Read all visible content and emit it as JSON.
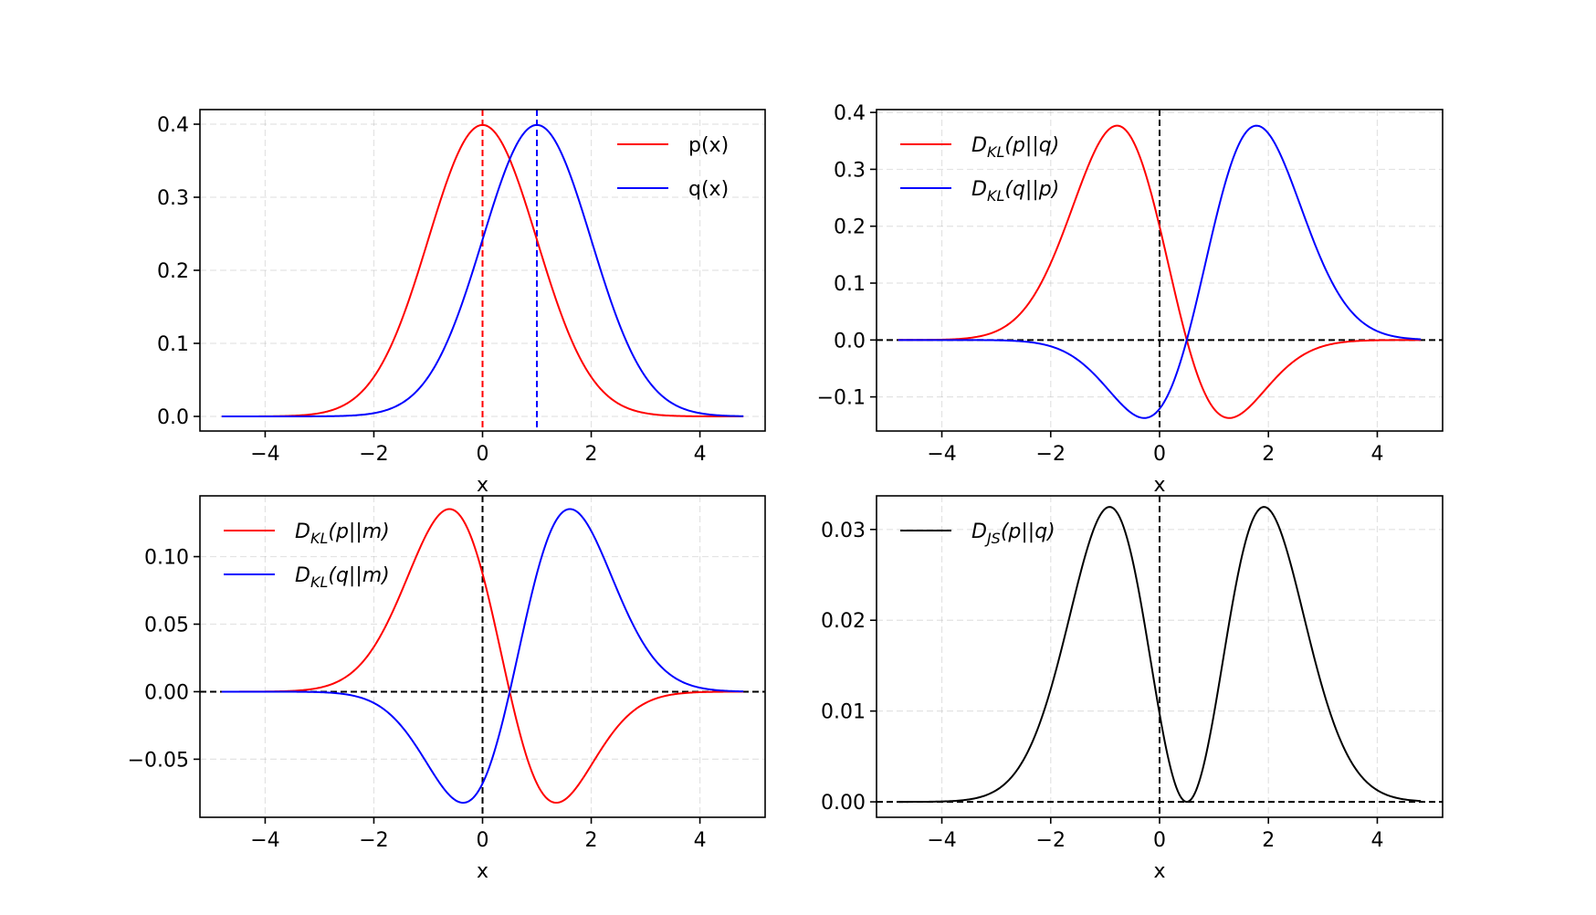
{
  "chart_data": [
    {
      "type": "line",
      "xlabel": "x",
      "xlim": [
        -5.2,
        5.2
      ],
      "ylim": [
        -0.02,
        0.42
      ],
      "xticks": [
        -4,
        -2,
        0,
        2,
        4
      ],
      "yticks": [
        0.0,
        0.1,
        0.2,
        0.3,
        0.4
      ],
      "ytick_decimals": 1,
      "grid": true,
      "legend": "top-right",
      "vlines": [
        {
          "x": 0,
          "color": "#ff0000"
        },
        {
          "x": 1,
          "color": "#0000ff"
        }
      ],
      "hlines": [],
      "x_range": [
        -4.8,
        4.8
      ],
      "series": [
        {
          "name": "p(x)",
          "label_main": "p(x)",
          "label_sub": "",
          "label_rest": "",
          "color": "#ff0000",
          "func": "p"
        },
        {
          "name": "q(x)",
          "label_main": "q(x)",
          "label_sub": "",
          "label_rest": "",
          "color": "#0000ff",
          "func": "q"
        }
      ]
    },
    {
      "type": "line",
      "xlabel": "x",
      "xlim": [
        -5.2,
        5.2
      ],
      "ylim": [
        -0.16,
        0.405
      ],
      "xticks": [
        -4,
        -2,
        0,
        2,
        4
      ],
      "yticks": [
        -0.1,
        0.0,
        0.1,
        0.2,
        0.3,
        0.4
      ],
      "ytick_decimals": 1,
      "grid": true,
      "legend": "top-left",
      "vlines": [
        {
          "x": 0,
          "color": "#000000"
        }
      ],
      "hlines": [
        {
          "y": 0,
          "color": "#000000"
        }
      ],
      "x_range": [
        -4.8,
        4.8
      ],
      "series": [
        {
          "name": "D_KL(p||q)",
          "label_main": "D",
          "label_sub": "KL",
          "label_rest": "(p||q)",
          "color": "#ff0000",
          "func": "klpq"
        },
        {
          "name": "D_KL(q||p)",
          "label_main": "D",
          "label_sub": "KL",
          "label_rest": "(q||p)",
          "color": "#0000ff",
          "func": "klqp"
        }
      ]
    },
    {
      "type": "line",
      "xlabel": "x",
      "xlim": [
        -5.2,
        5.2
      ],
      "ylim": [
        -0.093,
        0.145
      ],
      "xticks": [
        -4,
        -2,
        0,
        2,
        4
      ],
      "yticks": [
        -0.05,
        0.0,
        0.05,
        0.1
      ],
      "ytick_decimals": 2,
      "grid": true,
      "legend": "top-left",
      "vlines": [
        {
          "x": 0,
          "color": "#000000"
        }
      ],
      "hlines": [
        {
          "y": 0,
          "color": "#000000"
        }
      ],
      "x_range": [
        -4.8,
        4.8
      ],
      "series": [
        {
          "name": "D_KL(p||m)",
          "label_main": "D",
          "label_sub": "KL",
          "label_rest": "(p||m)",
          "color": "#ff0000",
          "func": "klpm"
        },
        {
          "name": "D_KL(q||m)",
          "label_main": "D",
          "label_sub": "KL",
          "label_rest": "(q||m)",
          "color": "#0000ff",
          "func": "klqm"
        }
      ]
    },
    {
      "type": "line",
      "xlabel": "x",
      "xlim": [
        -5.2,
        5.2
      ],
      "ylim": [
        -0.0017,
        0.0337
      ],
      "xticks": [
        -4,
        -2,
        0,
        2,
        4
      ],
      "yticks": [
        0.0,
        0.01,
        0.02,
        0.03
      ],
      "ytick_decimals": 2,
      "grid": true,
      "legend": "top-left",
      "vlines": [
        {
          "x": 0,
          "color": "#000000"
        }
      ],
      "hlines": [
        {
          "y": 0,
          "color": "#000000"
        }
      ],
      "x_range": [
        -4.8,
        4.8
      ],
      "series": [
        {
          "name": "D_JS(p||q)",
          "label_main": "D",
          "label_sub": "JS",
          "label_rest": "(p||q)",
          "color": "#000000",
          "func": "js"
        }
      ]
    }
  ]
}
